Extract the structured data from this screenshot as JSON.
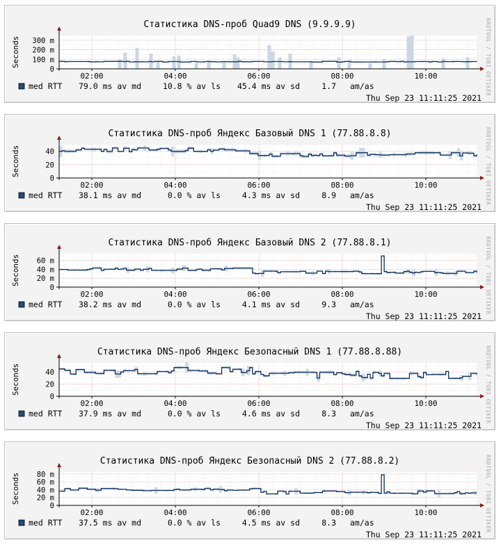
{
  "page": {
    "watermark": "RRDTOOL / TOBI OETIKER",
    "y_axis_label": "Seconds",
    "timestamp": "Thu Sep 23 11:11:25 2021",
    "legend_name": "med RTT",
    "legend_unit": "am/as",
    "colors": {
      "background": "#f3f3f3",
      "canvas": "#ffffff",
      "line": "#0c2f5c",
      "band": "#cad6e4",
      "grid_minor": "#dcdcdc",
      "grid_major": "#e8a3a3",
      "axis_arrow": "#8b1a1a",
      "legend_swatch": "#1f4e79"
    }
  },
  "chart_data": [
    {
      "type": "line",
      "title": "Статистика DNS-проб Quad9 DNS (9.9.9.9)",
      "ylabel": "Seconds",
      "x_ticks": [
        "02:00",
        "04:00",
        "06:00",
        "08:00",
        "10:00"
      ],
      "x_range": [
        "01:13",
        "11:13"
      ],
      "ylim": [
        0,
        350
      ],
      "y_ticks": [
        {
          "v": 0,
          "label": "0"
        },
        {
          "v": 100,
          "label": "100 m"
        },
        {
          "v": 200,
          "label": "200 m"
        },
        {
          "v": 300,
          "label": "300 m"
        }
      ],
      "grid": true,
      "legend_values": [
        "79.0 ms av md",
        "10.8 % av ls",
        "45.4 ms av sd",
        "1.7"
      ],
      "series": [
        {
          "name": "med RTT",
          "median_ms": 79,
          "noise_ms": 4,
          "baseline_ms": 75
        }
      ],
      "spikes": [
        {
          "t": "02:40",
          "h_ms": 100
        },
        {
          "t": "02:48",
          "h_ms": 170
        },
        {
          "t": "03:05",
          "h_ms": 220
        },
        {
          "t": "03:25",
          "h_ms": 160
        },
        {
          "t": "03:35",
          "h_ms": 80
        },
        {
          "t": "03:58",
          "h_ms": 130
        },
        {
          "t": "04:05",
          "h_ms": 140
        },
        {
          "t": "04:30",
          "h_ms": 60
        },
        {
          "t": "04:48",
          "h_ms": 90
        },
        {
          "t": "05:10",
          "h_ms": 80
        },
        {
          "t": "05:25",
          "h_ms": 150
        },
        {
          "t": "05:30",
          "h_ms": 120
        },
        {
          "t": "06:15",
          "h_ms": 250
        },
        {
          "t": "06:20",
          "h_ms": 180
        },
        {
          "t": "06:30",
          "h_ms": 120
        },
        {
          "t": "06:45",
          "h_ms": 160
        },
        {
          "t": "07:15",
          "h_ms": 80
        },
        {
          "t": "07:55",
          "h_ms": 120
        },
        {
          "t": "08:10",
          "h_ms": 70
        },
        {
          "t": "08:40",
          "h_ms": 60
        },
        {
          "t": "09:00",
          "h_ms": 100
        },
        {
          "t": "09:35",
          "h_ms": 340
        },
        {
          "t": "09:40",
          "h_ms": 350
        },
        {
          "t": "10:25",
          "h_ms": 110
        },
        {
          "t": "11:00",
          "h_ms": 120
        }
      ]
    },
    {
      "type": "line",
      "title": "Статистика DNS-проб Яндекс Базовый DNS 1 (77.88.8.8)",
      "ylabel": "Seconds",
      "x_ticks": [
        "02:00",
        "04:00",
        "06:00",
        "08:00",
        "10:00"
      ],
      "x_range": [
        "01:13",
        "11:13"
      ],
      "ylim": [
        0,
        50
      ],
      "y_ticks": [
        {
          "v": 0,
          "label": "0"
        },
        {
          "v": 20,
          "label": "20"
        },
        {
          "v": 40,
          "label": "40"
        }
      ],
      "grid": true,
      "legend_values": [
        "38.1 ms av md",
        "0.0 % av ls",
        "4.3 ms av sd",
        "8.9"
      ],
      "series": [
        {
          "name": "med RTT",
          "start_ms": 42,
          "end_ms": 35,
          "shift_t": "05:30",
          "noise_ms": 3,
          "spike": null
        }
      ]
    },
    {
      "type": "line",
      "title": "Статистика DNS-проб Яндекс Базовый DNS 2 (77.88.8.1)",
      "ylabel": "Seconds",
      "x_ticks": [
        "02:00",
        "04:00",
        "06:00",
        "08:00",
        "10:00"
      ],
      "x_range": [
        "01:13",
        "11:13"
      ],
      "ylim": [
        0,
        75
      ],
      "y_ticks": [
        {
          "v": 0,
          "label": "0"
        },
        {
          "v": 20,
          "label": "20 m"
        },
        {
          "v": 40,
          "label": "40 m"
        },
        {
          "v": 60,
          "label": "60 m"
        }
      ],
      "grid": true,
      "legend_values": [
        "38.2 ms av md",
        "0.0 % av ls",
        "4.1 ms av sd",
        "9.3"
      ],
      "series": [
        {
          "name": "med RTT",
          "start_ms": 40,
          "end_ms": 33,
          "shift_t": "05:45",
          "noise_ms": 3,
          "spike": {
            "t": "08:55",
            "ms": 70
          }
        }
      ]
    },
    {
      "type": "line",
      "title": "Статистика DNS-проб Яндекс Безопасный DNS 1 (77.88.8.88)",
      "ylabel": "Seconds",
      "x_ticks": [
        "02:00",
        "04:00",
        "06:00",
        "08:00",
        "10:00"
      ],
      "x_range": [
        "01:13",
        "11:13"
      ],
      "ylim": [
        0,
        55
      ],
      "y_ticks": [
        {
          "v": 0,
          "label": "0"
        },
        {
          "v": 20,
          "label": "20"
        },
        {
          "v": 40,
          "label": "40"
        }
      ],
      "grid": true,
      "legend_values": [
        "37.9 ms av md",
        "0.0 % av ls",
        "4.6 ms av sd",
        "8.3"
      ],
      "series": [
        {
          "name": "med RTT",
          "start_ms": 42,
          "end_ms": 35,
          "shift_t": "05:50",
          "noise_ms": 6,
          "spike": null
        }
      ]
    },
    {
      "type": "line",
      "title": "Статистика DNS-проб Яндекс Безопасный DNS 2 (77.88.8.2)",
      "ylabel": "Seconds",
      "x_ticks": [
        "02:00",
        "04:00",
        "06:00",
        "08:00",
        "10:00"
      ],
      "x_range": [
        "01:13",
        "11:13"
      ],
      "ylim": [
        0,
        85
      ],
      "y_ticks": [
        {
          "v": 0,
          "label": "0"
        },
        {
          "v": 20,
          "label": "20 m"
        },
        {
          "v": 40,
          "label": "40 m"
        },
        {
          "v": 60,
          "label": "60 m"
        },
        {
          "v": 80,
          "label": "80 m"
        }
      ],
      "grid": true,
      "legend_values": [
        "37.5 ms av md",
        "0.0 % av ls",
        "4.5 ms av sd",
        "8.3"
      ],
      "series": [
        {
          "name": "med RTT",
          "start_ms": 40,
          "end_ms": 33,
          "shift_t": "06:00",
          "noise_ms": 4,
          "spike": {
            "t": "08:55",
            "ms": 78
          }
        }
      ]
    }
  ]
}
